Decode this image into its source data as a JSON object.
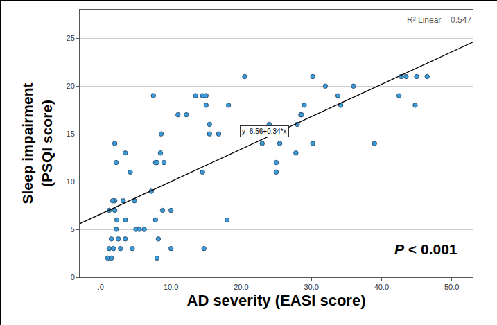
{
  "chart_data": {
    "type": "scatter",
    "x_label": "AD severity (EASI score)",
    "y_label": "Sleep impairment\n(PSQI score)",
    "annotations": [
      "R² Linear = 0.547",
      "y=6.56+0.34*x",
      "P < 0.001"
    ],
    "xlim": [
      -3,
      53
    ],
    "ylim": [
      0,
      28
    ],
    "xticks": [
      {
        "value": 0,
        "label": ".0"
      },
      {
        "value": 10,
        "label": "10.0"
      },
      {
        "value": 20,
        "label": "20.0"
      },
      {
        "value": 30,
        "label": "30.0"
      },
      {
        "value": 40,
        "label": "40.0"
      },
      {
        "value": 50,
        "label": "50.0"
      }
    ],
    "yticks": [
      0,
      5,
      10,
      15,
      20,
      25
    ],
    "grid": "y",
    "series": [
      {
        "type": "scatter",
        "color": "#3d9ad8",
        "marker": "circle",
        "x": [
          1.0,
          1.5,
          1.2,
          1.8,
          1.2,
          1.5,
          2.0,
          1.7,
          2.0,
          2.3,
          2.2,
          2.2,
          2.0,
          2.5,
          2.8,
          3.2,
          3.5,
          3.5,
          3.5,
          4.2,
          4.5,
          4.8,
          5.0,
          5.5,
          6.2,
          7.2,
          7.5,
          7.8,
          8.0,
          7.8,
          8.0,
          8.2,
          8.5,
          8.6,
          8.8,
          9.0,
          10.0,
          10.0,
          11.0,
          12.2,
          13.5,
          14.5,
          15.0,
          15.0,
          14.5,
          14.7,
          15.5,
          15.5,
          16.8,
          18.0,
          18.2,
          20.5,
          23.0,
          24.0,
          25.0,
          25.0,
          25.5,
          27.8,
          28.0,
          28.5,
          28.6,
          29.0,
          30.2,
          30.2,
          32.0,
          33.8,
          34.2,
          36.0,
          39.0,
          42.5,
          42.8,
          43.5,
          44.8,
          45.0,
          46.5
        ],
        "values": [
          2,
          2,
          3,
          3,
          7,
          4,
          8,
          8,
          7,
          6,
          5,
          12,
          14,
          4,
          3,
          8,
          6,
          13,
          4,
          11,
          3,
          8,
          5,
          5,
          5,
          9,
          19,
          12,
          12,
          6,
          2,
          4,
          13,
          15,
          7,
          12,
          7,
          3,
          17,
          17,
          19,
          19,
          19,
          18,
          11,
          3,
          16,
          15,
          15,
          6,
          18,
          21,
          14,
          16,
          12,
          11,
          14,
          13,
          16,
          17,
          17,
          18,
          21,
          14,
          20,
          19,
          18,
          20,
          14,
          19,
          21,
          21,
          18,
          21,
          21
        ]
      },
      {
        "type": "line",
        "color": "#000000",
        "line_style": "solid",
        "x": [
          -3,
          53
        ],
        "values": [
          5.6,
          24.6
        ]
      }
    ]
  }
}
